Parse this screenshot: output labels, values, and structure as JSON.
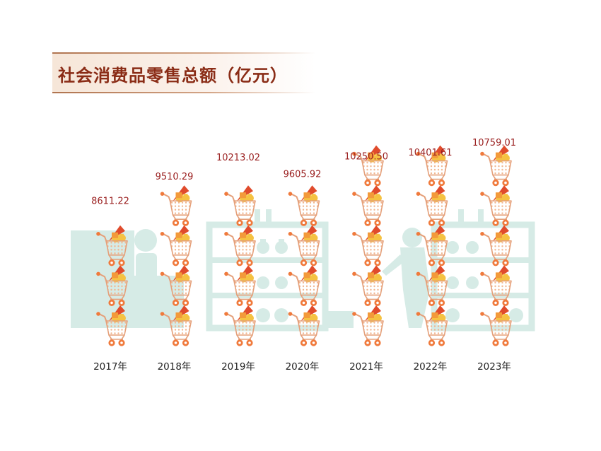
{
  "title": "社会消费品零售总额（亿元）",
  "chart_data": {
    "type": "bar",
    "title": "社会消费品零售总额（亿元）",
    "categories": [
      "2017年",
      "2018年",
      "2019年",
      "2020年",
      "2021年",
      "2022年",
      "2023年"
    ],
    "values": [
      8611.22,
      9510.29,
      10213.02,
      9605.92,
      10250.5,
      10401.61,
      10759.01
    ],
    "value_labels": [
      "8611.22",
      "9510.29",
      "10213.02",
      "9605.92",
      "10250.50",
      "10401.61",
      "10759.01"
    ],
    "xlabel": "",
    "ylabel": "",
    "grid": false,
    "legend": "none",
    "mark": "shopping-cart-stack",
    "colors": {
      "title": "#8a2c16",
      "value_label": "#9a1f1f",
      "cart_frame": "#e5a07a",
      "cart_dots": "#f1b58e",
      "wheel": "#f07a3c",
      "goods_yellow": "#f5c242",
      "goods_red": "#e04b2c",
      "background_scene": "#d6ebe6"
    }
  }
}
